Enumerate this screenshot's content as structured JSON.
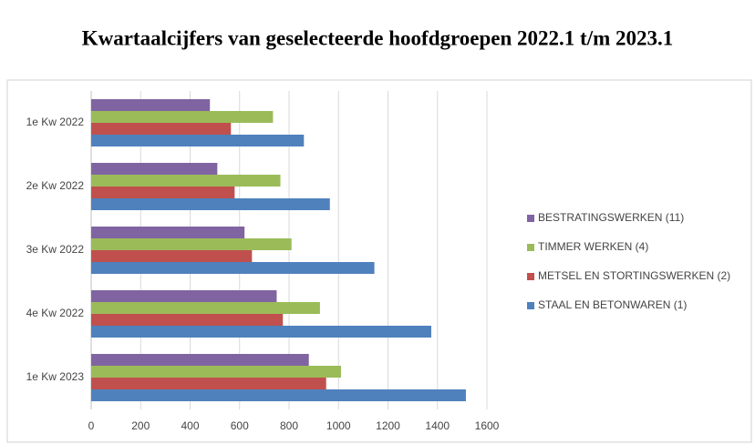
{
  "chart_data": {
    "type": "hbar",
    "title": "Kwartaalcijfers van geselecteerde hoofdgroepen   2022.1 t/m  2023.1",
    "categories": [
      "1e Kw 2022",
      "2e Kw 2022",
      "3e Kw 2022",
      "4e Kw 2022",
      "1e Kw 2023"
    ],
    "series": [
      {
        "name": "BESTRATINGSWERKEN (11)",
        "color": "#8064a2",
        "values": [
          480,
          510,
          620,
          750,
          880
        ]
      },
      {
        "name": "TIMMER WERKEN (4)",
        "color": "#9bbb59",
        "values": [
          735,
          765,
          810,
          925,
          1010
        ]
      },
      {
        "name": "METSEL EN STORTINGSWERKEN (2)",
        "color": "#c0504d",
        "values": [
          565,
          580,
          650,
          775,
          950
        ]
      },
      {
        "name": "STAAL EN  BETONWAREN (1)",
        "color": "#4f81bd",
        "values": [
          860,
          965,
          1145,
          1375,
          1515
        ]
      }
    ],
    "xlim": [
      0,
      1600
    ],
    "xticks": [
      0,
      200,
      400,
      600,
      800,
      1000,
      1200,
      1400,
      1600
    ],
    "grid": true,
    "legend": "right"
  }
}
